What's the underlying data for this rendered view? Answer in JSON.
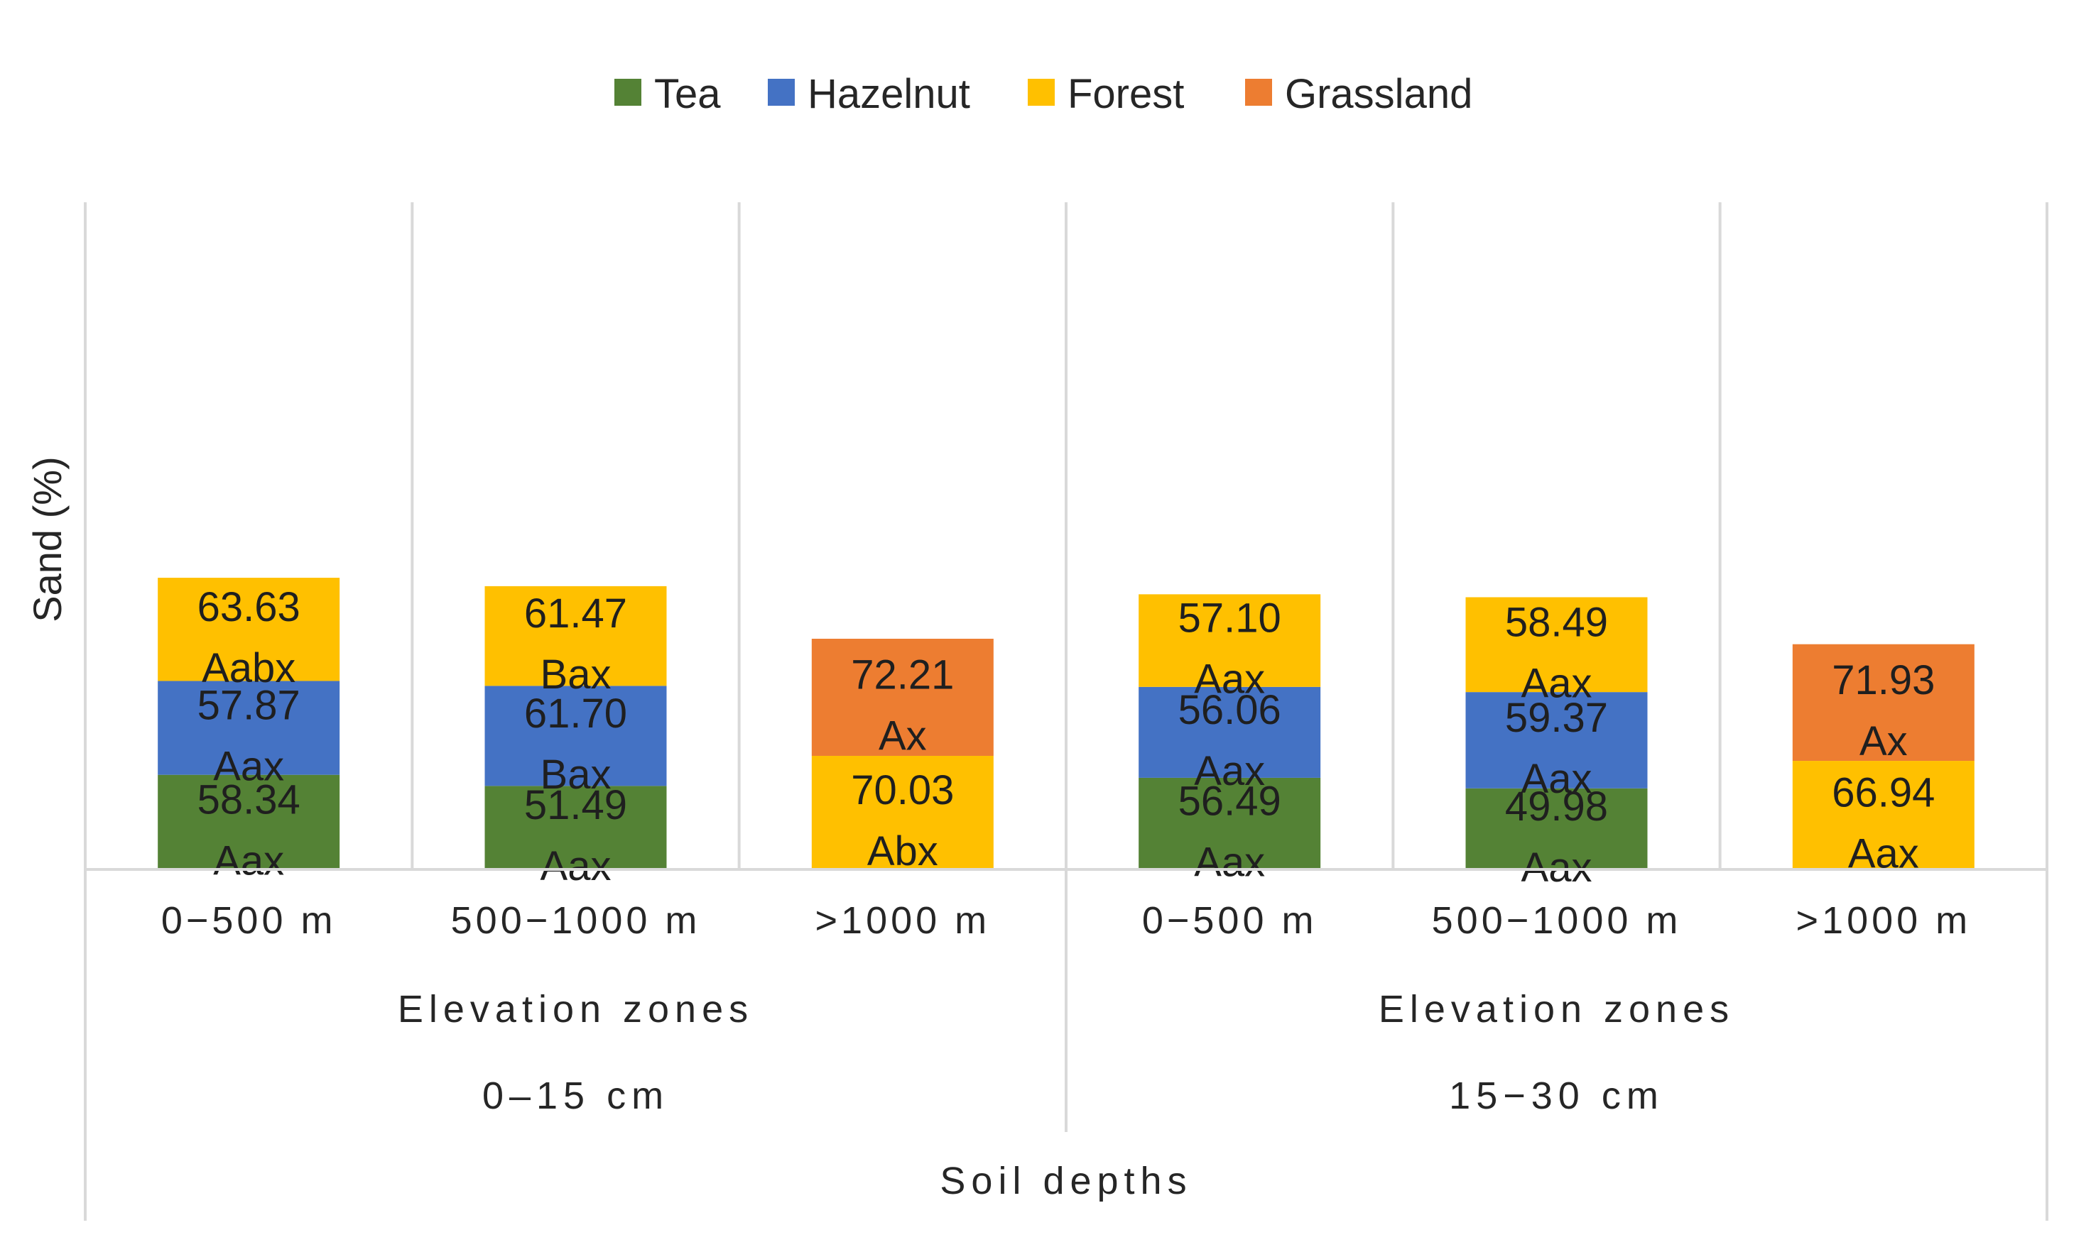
{
  "chart_data": {
    "type": "bar",
    "stacked": true,
    "ylabel": "Sand (%)",
    "legend": {
      "position": "top",
      "entries": [
        {
          "name": "Tea",
          "color": "#548235"
        },
        {
          "name": "Hazelnut",
          "color": "#4472c4"
        },
        {
          "name": "Forest",
          "color": "#ffc000"
        },
        {
          "name": "Grassland",
          "color": "#ed7d31"
        }
      ]
    },
    "grid": false,
    "x_levels": {
      "level1_name": "Elevation zones",
      "level2_name": "Soil depths"
    },
    "groups": [
      {
        "depth": "0–15 cm",
        "zones": [
          {
            "label": "0−500 m",
            "segments": [
              {
                "series": "Tea",
                "value": 58.34,
                "letters": "Aax"
              },
              {
                "series": "Hazelnut",
                "value": 57.87,
                "letters": "Aax"
              },
              {
                "series": "Forest",
                "value": 63.63,
                "letters": "Aabx"
              }
            ]
          },
          {
            "label": "500−1000 m",
            "segments": [
              {
                "series": "Tea",
                "value": 51.49,
                "letters": "Aax"
              },
              {
                "series": "Hazelnut",
                "value": 61.7,
                "letters": "Bax"
              },
              {
                "series": "Forest",
                "value": 61.47,
                "letters": "Bax"
              }
            ]
          },
          {
            "label": ">1000 m",
            "segments": [
              {
                "series": "Forest",
                "value": 70.03,
                "letters": "Abx"
              },
              {
                "series": "Grassland",
                "value": 72.21,
                "letters": "Ax"
              }
            ]
          }
        ]
      },
      {
        "depth": "15−30 cm",
        "zones": [
          {
            "label": "0−500 m",
            "segments": [
              {
                "series": "Tea",
                "value": 56.49,
                "letters": "Aax"
              },
              {
                "series": "Hazelnut",
                "value": 56.06,
                "letters": "Aax"
              },
              {
                "series": "Forest",
                "value": 57.1,
                "letters": "Aax"
              }
            ]
          },
          {
            "label": "500−1000 m",
            "segments": [
              {
                "series": "Tea",
                "value": 49.98,
                "letters": "Aax"
              },
              {
                "series": "Hazelnut",
                "value": 59.37,
                "letters": "Aax"
              },
              {
                "series": "Forest",
                "value": 58.49,
                "letters": "Aax"
              }
            ]
          },
          {
            "label": ">1000 m",
            "segments": [
              {
                "series": "Forest",
                "value": 66.94,
                "letters": "Aax"
              },
              {
                "series": "Grassland",
                "value": 71.93,
                "letters": "Ax"
              }
            ]
          }
        ]
      }
    ]
  }
}
